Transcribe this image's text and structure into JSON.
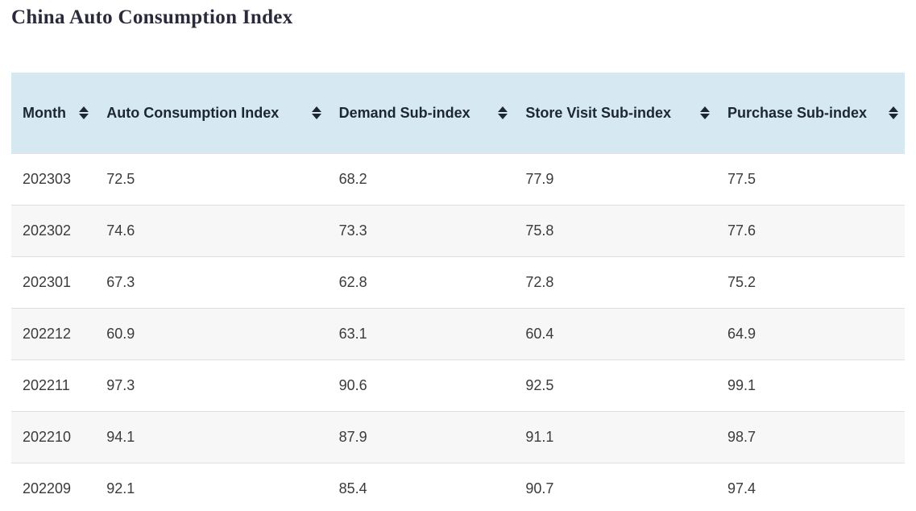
{
  "colors": {
    "header_bg": "#d6e9f2",
    "row_alt_bg": "#f7f7f7",
    "row_border": "#e0e0e0",
    "header_text": "#1c2733",
    "body_text": "#3b3b3b",
    "title_text": "#2a2a3b"
  },
  "icons": {
    "sort": "sort-arrows (up and down solid triangles)"
  },
  "chart_data": {
    "type": "table",
    "title": "China Auto Consumption Index",
    "columns": [
      "Month",
      "Auto Consumption Index",
      "Demand Sub-index",
      "Store Visit Sub-index",
      "Purchase Sub-index"
    ],
    "columns_sortable": true,
    "rows": [
      [
        "202303",
        72.5,
        68.2,
        77.9,
        77.5
      ],
      [
        "202302",
        74.6,
        73.3,
        75.8,
        77.6
      ],
      [
        "202301",
        67.3,
        62.8,
        72.8,
        75.2
      ],
      [
        "202212",
        60.9,
        63.1,
        60.4,
        64.9
      ],
      [
        "202211",
        97.3,
        90.6,
        92.5,
        99.1
      ],
      [
        "202210",
        94.1,
        87.9,
        91.1,
        98.7
      ],
      [
        "202209",
        92.1,
        85.4,
        90.7,
        97.4
      ]
    ]
  }
}
